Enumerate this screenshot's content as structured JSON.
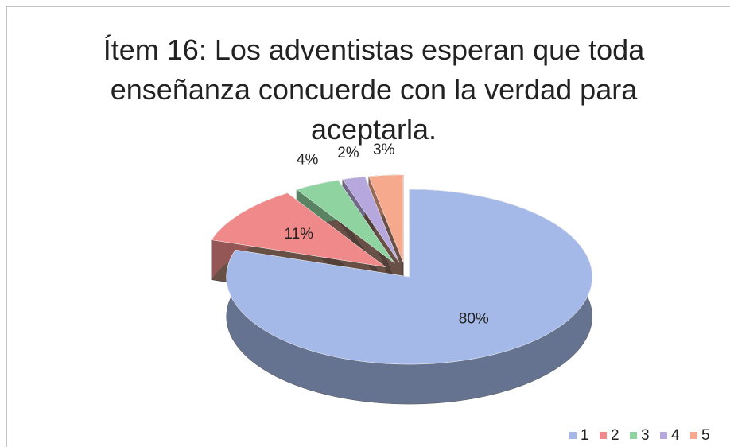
{
  "chart_data": {
    "type": "pie",
    "title": "Ítem 16: Los adventistas esperan que toda enseñanza concuerde con la verdad para aceptarla.",
    "categories": [
      "1",
      "2",
      "3",
      "4",
      "5"
    ],
    "values": [
      80,
      11,
      4,
      2,
      3
    ],
    "value_labels": [
      "80%",
      "11%",
      "4%",
      "2%",
      "3%"
    ],
    "colors": [
      "#a4b9e8",
      "#f08a8a",
      "#8fd3a0",
      "#b6a8dc",
      "#f7a98e"
    ],
    "legend": "bottom-right"
  }
}
